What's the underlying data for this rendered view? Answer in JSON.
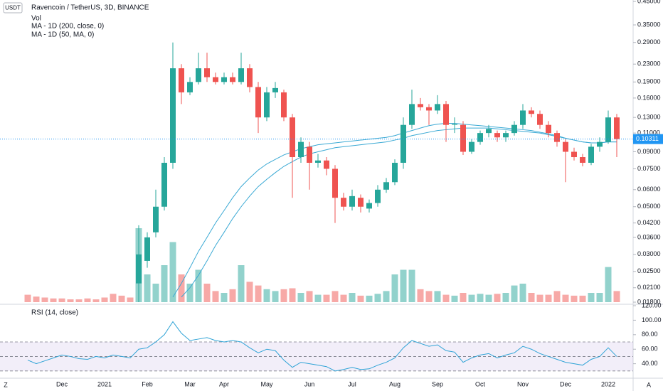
{
  "chart_data": [
    {
      "type": "candlestick",
      "title": "Ravencoin / TetherUS, 3D, BINANCE",
      "currency": "USDT",
      "categories": [
        null,
        null,
        null,
        null,
        "Dec",
        null,
        null,
        null,
        null,
        "2021",
        null,
        null,
        null,
        null,
        "Feb",
        null,
        null,
        null,
        null,
        "Mar",
        null,
        null,
        null,
        "Apr",
        null,
        null,
        null,
        null,
        "May",
        null,
        null,
        null,
        null,
        "Jun",
        null,
        null,
        null,
        null,
        "Jul",
        null,
        null,
        null,
        null,
        "Aug",
        null,
        null,
        null,
        null,
        "Sep",
        null,
        null,
        null,
        null,
        "Oct",
        null,
        null,
        null,
        null,
        "Nov",
        null,
        null,
        null,
        null,
        "Dec",
        null,
        null,
        null,
        null,
        "2022",
        null
      ],
      "open": [
        null,
        null,
        null,
        null,
        null,
        null,
        null,
        null,
        null,
        null,
        null,
        null,
        null,
        0.022,
        0.028,
        0.038,
        0.05,
        0.08,
        0.22,
        0.17,
        0.19,
        0.22,
        0.2,
        0.19,
        0.2,
        0.19,
        0.22,
        0.18,
        0.13,
        0.17,
        0.17,
        0.13,
        0.085,
        0.095,
        0.08,
        0.082,
        0.075,
        0.055,
        0.05,
        0.055,
        0.049,
        0.052,
        0.06,
        0.065,
        0.08,
        0.12,
        0.15,
        0.145,
        0.14,
        0.15,
        0.12,
        0.12,
        0.09,
        0.1,
        0.11,
        0.11,
        0.105,
        0.11,
        0.12,
        0.14,
        0.135,
        0.12,
        0.11,
        0.1,
        0.09,
        0.085,
        0.08,
        0.095,
        0.1,
        0.13
      ],
      "high": [
        null,
        null,
        null,
        null,
        null,
        null,
        null,
        null,
        null,
        null,
        null,
        null,
        null,
        0.041,
        0.038,
        0.06,
        0.085,
        0.29,
        0.23,
        0.2,
        0.26,
        0.26,
        0.21,
        0.21,
        0.21,
        0.26,
        0.23,
        0.19,
        0.18,
        0.19,
        0.175,
        0.135,
        0.105,
        0.1,
        0.088,
        0.085,
        0.078,
        0.058,
        0.06,
        0.057,
        0.054,
        0.063,
        0.068,
        0.083,
        0.13,
        0.175,
        0.16,
        0.15,
        0.165,
        0.155,
        0.13,
        0.125,
        0.103,
        0.113,
        0.12,
        0.113,
        0.113,
        0.125,
        0.15,
        0.145,
        0.14,
        0.125,
        0.113,
        0.103,
        0.094,
        0.088,
        0.098,
        0.105,
        0.14,
        0.135
      ],
      "low": [
        null,
        null,
        null,
        null,
        null,
        null,
        null,
        null,
        null,
        null,
        null,
        null,
        null,
        0.018,
        0.026,
        0.036,
        0.048,
        0.075,
        0.15,
        0.165,
        0.185,
        0.19,
        0.185,
        0.185,
        0.185,
        0.185,
        0.17,
        0.11,
        0.125,
        0.16,
        0.125,
        0.055,
        0.08,
        0.06,
        0.076,
        0.07,
        0.042,
        0.048,
        0.048,
        0.047,
        0.047,
        0.05,
        0.058,
        0.063,
        0.075,
        0.115,
        0.14,
        0.12,
        0.135,
        0.1,
        0.11,
        0.087,
        0.088,
        0.097,
        0.105,
        0.1,
        0.1,
        0.107,
        0.115,
        0.13,
        0.115,
        0.105,
        0.095,
        0.065,
        0.082,
        0.077,
        0.078,
        0.09,
        0.098,
        0.085
      ],
      "close": [
        null,
        null,
        null,
        null,
        null,
        null,
        null,
        null,
        null,
        null,
        null,
        null,
        null,
        0.03,
        0.036,
        0.05,
        0.08,
        0.22,
        0.17,
        0.19,
        0.22,
        0.2,
        0.19,
        0.2,
        0.19,
        0.22,
        0.18,
        0.13,
        0.17,
        0.178,
        0.13,
        0.085,
        0.1,
        0.08,
        0.082,
        0.075,
        0.055,
        0.05,
        0.056,
        0.05,
        0.052,
        0.06,
        0.065,
        0.08,
        0.12,
        0.15,
        0.145,
        0.14,
        0.15,
        0.12,
        0.121,
        0.09,
        0.1,
        0.11,
        0.115,
        0.105,
        0.11,
        0.12,
        0.14,
        0.135,
        0.12,
        0.11,
        0.1,
        0.09,
        0.085,
        0.08,
        0.095,
        0.1,
        0.13,
        0.10311
      ],
      "up_color": "#26a69a",
      "down_color": "#ef5350",
      "series": [
        {
          "name": "Vol",
          "type": "bar",
          "axis": "y2",
          "values": [
            8,
            6,
            5,
            4,
            4,
            3,
            3,
            4,
            3,
            5,
            9,
            7,
            5,
            80,
            30,
            20,
            40,
            65,
            30,
            20,
            35,
            20,
            12,
            10,
            14,
            40,
            22,
            18,
            14,
            12,
            14,
            15,
            10,
            12,
            8,
            8,
            12,
            8,
            10,
            7,
            7,
            9,
            12,
            30,
            35,
            35,
            14,
            12,
            12,
            8,
            7,
            10,
            8,
            9,
            8,
            9,
            10,
            18,
            20,
            10,
            8,
            8,
            12,
            8,
            7,
            7,
            10,
            10,
            38,
            12
          ]
        },
        {
          "name": "MA - 1D (200, close, 0)",
          "type": "line",
          "color": "#3aa9d4",
          "values": [
            null,
            null,
            null,
            null,
            null,
            null,
            null,
            null,
            null,
            null,
            null,
            null,
            null,
            null,
            null,
            null,
            null,
            0.019,
            0.022,
            0.026,
            0.031,
            0.036,
            0.042,
            0.048,
            0.055,
            0.062,
            0.068,
            0.074,
            0.079,
            0.083,
            0.087,
            0.09,
            0.093,
            0.095,
            0.097,
            0.098,
            0.099,
            0.1,
            0.101,
            0.102,
            0.103,
            0.104,
            0.105,
            0.107,
            0.11,
            0.113,
            0.116,
            0.119,
            0.121,
            0.122,
            0.122,
            0.121,
            0.12,
            0.119,
            0.118,
            0.117,
            0.116,
            0.115,
            0.114,
            0.113,
            0.111,
            0.109,
            0.107,
            0.104,
            0.102,
            0.1,
            0.099,
            0.099,
            0.1,
            0.1
          ]
        },
        {
          "name": "MA - 1D (50, MA, 0)",
          "type": "line",
          "color": "#3aa9d4",
          "values": [
            null,
            null,
            null,
            null,
            null,
            null,
            null,
            null,
            null,
            null,
            null,
            null,
            null,
            null,
            null,
            null,
            null,
            null,
            0.019,
            0.021,
            0.024,
            0.028,
            0.033,
            0.038,
            0.044,
            0.05,
            0.056,
            0.062,
            0.067,
            0.072,
            0.077,
            0.081,
            0.085,
            0.088,
            0.09,
            0.092,
            0.094,
            0.095,
            0.096,
            0.097,
            0.098,
            0.099,
            0.1,
            0.102,
            0.104,
            0.107,
            0.109,
            0.111,
            0.113,
            0.114,
            0.115,
            0.116,
            0.116,
            0.116,
            0.116,
            0.115,
            0.114,
            0.113,
            0.112,
            0.111,
            0.11,
            0.108,
            0.106,
            0.104,
            0.102,
            0.1,
            0.099,
            0.099,
            0.1,
            0.1
          ]
        }
      ],
      "log_scale": true,
      "ylim": [
        0.018,
        0.45
      ],
      "yticks": [
        {
          "value": 0.45,
          "label": "0.45000"
        },
        {
          "value": 0.35,
          "label": "0.35000"
        },
        {
          "value": 0.29,
          "label": "0.29000"
        },
        {
          "value": 0.23,
          "label": "0.23000"
        },
        {
          "value": 0.19,
          "label": "0.19000"
        },
        {
          "value": 0.16,
          "label": "0.16000"
        },
        {
          "value": 0.13,
          "label": "0.13000"
        },
        {
          "value": 0.11,
          "label": "0.11000"
        },
        {
          "value": 0.09,
          "label": "0.09000"
        },
        {
          "value": 0.075,
          "label": "0.07500"
        },
        {
          "value": 0.06,
          "label": "0.06000"
        },
        {
          "value": 0.05,
          "label": "0.05000"
        },
        {
          "value": 0.042,
          "label": "0.04200"
        },
        {
          "value": 0.036,
          "label": "0.03600"
        },
        {
          "value": 0.03,
          "label": "0.03000"
        },
        {
          "value": 0.025,
          "label": "0.02500"
        },
        {
          "value": 0.021,
          "label": "0.02100"
        },
        {
          "value": 0.018,
          "label": "0.01800"
        }
      ],
      "y2lim": [
        0,
        100
      ],
      "last_price": 0.10311,
      "last_price_color": "#2196f3"
    },
    {
      "type": "line",
      "title": "RSI (14, close)",
      "color": "#2ea3d6",
      "values": [
        45,
        40,
        44,
        48,
        52,
        50,
        47,
        46,
        50,
        48,
        52,
        50,
        48,
        60,
        62,
        70,
        80,
        98,
        82,
        72,
        74,
        76,
        72,
        70,
        72,
        70,
        62,
        55,
        60,
        58,
        45,
        35,
        42,
        40,
        38,
        36,
        30,
        32,
        35,
        32,
        33,
        38,
        42,
        48,
        62,
        72,
        68,
        64,
        66,
        58,
        56,
        42,
        48,
        52,
        54,
        48,
        52,
        55,
        64,
        60,
        54,
        50,
        46,
        42,
        40,
        38,
        46,
        50,
        62,
        50
      ],
      "ylim": [
        22,
        120
      ],
      "yticks": [
        {
          "value": 120,
          "label": "120.00"
        },
        {
          "value": 100,
          "label": "100.00"
        },
        {
          "value": 80,
          "label": "80.00"
        },
        {
          "value": 60,
          "label": "60.00"
        },
        {
          "value": 40,
          "label": "40.00"
        }
      ],
      "levels": [
        70,
        50,
        30
      ]
    }
  ],
  "controls": {
    "zoom": "Z",
    "auto": "A"
  }
}
